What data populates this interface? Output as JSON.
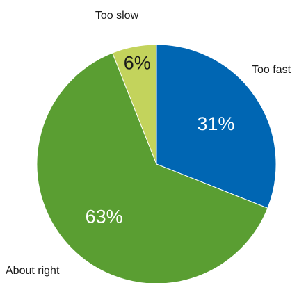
{
  "chart_data": {
    "type": "pie",
    "categories": [
      "Too fast",
      "About right",
      "Too slow"
    ],
    "values": [
      31,
      63,
      6
    ],
    "value_labels": [
      "31%",
      "63%",
      "6%"
    ],
    "colors": [
      "#0066b3",
      "#5a9e32",
      "#c3d35c"
    ],
    "value_label_colors": [
      "#ffffff",
      "#ffffff",
      "#1a1a1a"
    ],
    "start_angle_deg": 0,
    "direction": "clockwise"
  }
}
